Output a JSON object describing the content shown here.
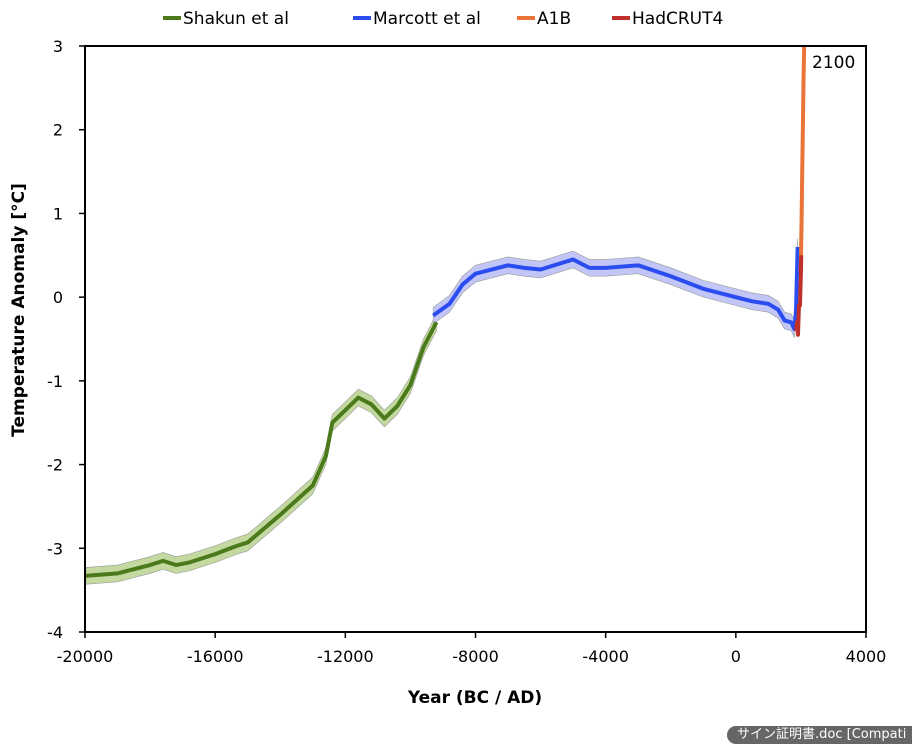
{
  "chart_data": {
    "type": "line",
    "title": "",
    "xlabel": "Year (BC / AD)",
    "ylabel": "Temperature Anomaly [°C]",
    "xlim": [
      -20000,
      4000
    ],
    "ylim": [
      -4,
      3
    ],
    "xticks": [
      -20000,
      -16000,
      -12000,
      -8000,
      -4000,
      0,
      4000
    ],
    "yticks": [
      -4,
      -3,
      -2,
      -1,
      0,
      1,
      2,
      3
    ],
    "grid": false,
    "legend": "top",
    "annotation": "2100",
    "series": [
      {
        "name": "Shakun et al",
        "color": "#4a7a1c",
        "band_color": "#c3d9a0",
        "band": 0.1,
        "x": [
          -20000,
          -19000,
          -18000,
          -17600,
          -17200,
          -16800,
          -16000,
          -15400,
          -15000,
          -14000,
          -13000,
          -12600,
          -12400,
          -12000,
          -11600,
          -11200,
          -10800,
          -10400,
          -10000,
          -9600,
          -9200
        ],
        "y": [
          -3.33,
          -3.3,
          -3.2,
          -3.15,
          -3.2,
          -3.17,
          -3.07,
          -2.98,
          -2.93,
          -2.6,
          -2.25,
          -1.9,
          -1.5,
          -1.35,
          -1.2,
          -1.28,
          -1.45,
          -1.3,
          -1.05,
          -0.6,
          -0.3
        ]
      },
      {
        "name": "Marcott et al",
        "color": "#2b4df0",
        "band_color": "#c2c6f7",
        "band": 0.1,
        "x": [
          -9300,
          -8800,
          -8400,
          -8000,
          -7000,
          -6500,
          -6000,
          -5000,
          -4500,
          -4000,
          -3000,
          -2000,
          -1000,
          0,
          500,
          1000,
          1300,
          1500,
          1700,
          1800,
          1850,
          1900
        ],
        "y": [
          -0.22,
          -0.08,
          0.15,
          0.28,
          0.38,
          0.35,
          0.33,
          0.45,
          0.35,
          0.35,
          0.38,
          0.25,
          0.1,
          0.0,
          -0.05,
          -0.08,
          -0.15,
          -0.28,
          -0.3,
          -0.38,
          -0.15,
          0.6
        ]
      },
      {
        "name": "A1B",
        "color": "#e8743a",
        "x": [
          1990,
          2000,
          2020,
          2040,
          2060,
          2080,
          2100
        ],
        "y": [
          0.3,
          0.45,
          0.9,
          1.5,
          2.0,
          2.6,
          3.0
        ]
      },
      {
        "name": "HadCRUT4",
        "color": "#c0302a",
        "x": [
          1850,
          1880,
          1910,
          1940,
          1970,
          2000,
          2010
        ],
        "y": [
          -0.4,
          -0.3,
          -0.45,
          -0.1,
          -0.1,
          0.3,
          0.5
        ]
      }
    ]
  },
  "overlay": {
    "window_badge": "サイン証明書.doc [Compati"
  }
}
